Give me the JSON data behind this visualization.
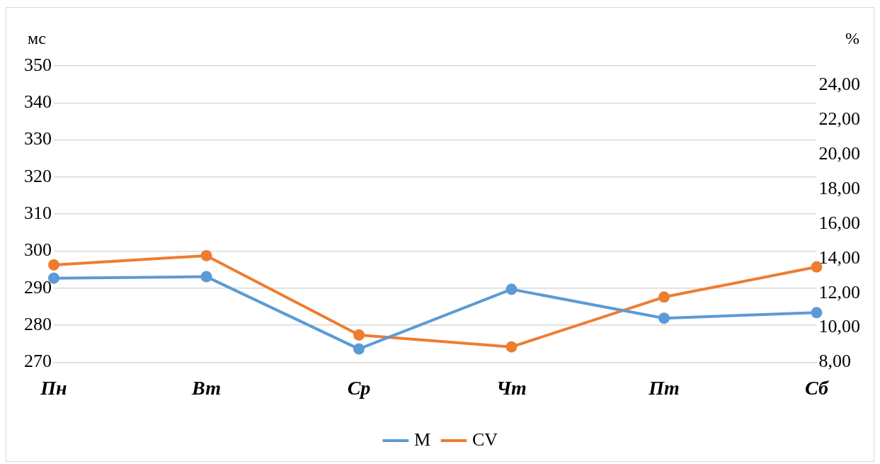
{
  "chart_data": {
    "type": "line",
    "ylabel": "мс",
    "y2label": "%",
    "categories": [
      "Пн",
      "Вт",
      "Ср",
      "Чт",
      "Пт",
      "Сб"
    ],
    "series": [
      {
        "name": "M",
        "color": "#5b9bd5",
        "values": [
          292.7,
          293.1,
          273.6,
          289.7,
          281.9,
          283.4
        ]
      },
      {
        "name": "CV",
        "color": "#ed7d31",
        "axis": "y2",
        "values": [
          13.63,
          14.16,
          9.58,
          8.89,
          11.77,
          13.51
        ]
      }
    ],
    "ylim": [
      270,
      350
    ],
    "yticks": [
      270,
      280,
      290,
      300,
      310,
      320,
      330,
      340,
      350
    ],
    "y2lim": [
      8,
      25.13
    ],
    "y2ticks": [
      {
        "value": 8,
        "label": "8,00"
      },
      {
        "value": 10,
        "label": "10,00"
      },
      {
        "value": 12,
        "label": "12,00"
      },
      {
        "value": 14,
        "label": "14,00"
      },
      {
        "value": 16,
        "label": "16,00"
      },
      {
        "value": 18,
        "label": "18,00"
      },
      {
        "value": 20,
        "label": "20,00"
      },
      {
        "value": 22,
        "label": "22,00"
      },
      {
        "value": 24,
        "label": "24,00"
      }
    ],
    "grid": "y",
    "legend": "bottom",
    "marker": "circle",
    "line_style": "solid"
  }
}
